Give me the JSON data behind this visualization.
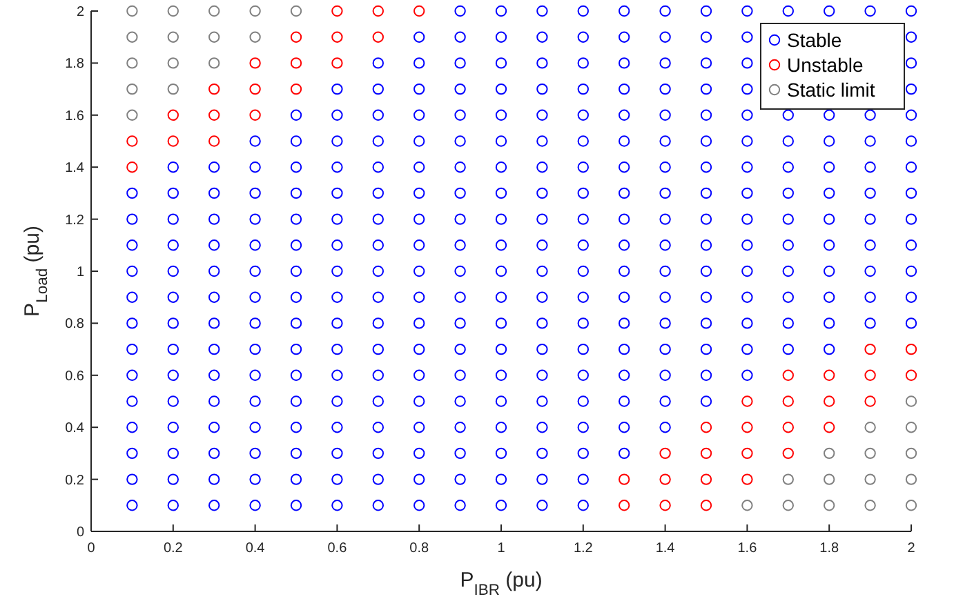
{
  "chart_data": {
    "type": "scatter",
    "xlabel": "P$_{IBR}$ (pu)",
    "ylabel": "P$_{Load}$ (pu)",
    "xlim": [
      0,
      2
    ],
    "xticks": [
      0,
      0.2,
      0.4,
      0.6,
      0.8,
      1,
      1.2,
      1.4,
      1.6,
      1.8,
      2
    ],
    "ylim": [
      0,
      2
    ],
    "yticks": [
      0,
      0.2,
      0.4,
      0.6,
      0.8,
      1,
      1.2,
      1.4,
      1.6,
      1.8,
      2
    ],
    "grid": false,
    "legend": "top right",
    "marker": "circle",
    "series": [
      {
        "name": "Stable",
        "color": "#0000ff",
        "x": [
          0.1,
          0.2,
          0.3,
          0.4,
          0.5,
          0.6,
          0.7,
          0.8,
          0.9,
          1,
          1.1,
          1.2,
          0.1,
          0.2,
          0.3,
          0.4,
          0.5,
          0.6,
          0.7,
          0.8,
          0.9,
          1,
          1.1,
          1.2,
          0.1,
          0.2,
          0.3,
          0.4,
          0.5,
          0.6,
          0.7,
          0.8,
          0.9,
          1,
          1.1,
          1.2,
          1.3,
          0.1,
          0.2,
          0.3,
          0.4,
          0.5,
          0.6,
          0.7,
          0.8,
          0.9,
          1,
          1.1,
          1.2,
          1.3,
          1.4,
          0.1,
          0.2,
          0.3,
          0.4,
          0.5,
          0.6,
          0.7,
          0.8,
          0.9,
          1,
          1.1,
          1.2,
          1.3,
          1.4,
          1.5,
          0.1,
          0.2,
          0.3,
          0.4,
          0.5,
          0.6,
          0.7,
          0.8,
          0.9,
          1,
          1.1,
          1.2,
          1.3,
          1.4,
          1.5,
          1.6,
          0.1,
          0.2,
          0.3,
          0.4,
          0.5,
          0.6,
          0.7,
          0.8,
          0.9,
          1,
          1.1,
          1.2,
          1.3,
          1.4,
          1.5,
          1.6,
          1.7,
          1.8,
          0.1,
          0.2,
          0.3,
          0.4,
          0.5,
          0.6,
          0.7,
          0.8,
          0.9,
          1,
          1.1,
          1.2,
          1.3,
          1.4,
          1.5,
          1.6,
          1.7,
          1.8,
          1.9,
          2,
          0.1,
          0.2,
          0.3,
          0.4,
          0.5,
          0.6,
          0.7,
          0.8,
          0.9,
          1,
          1.1,
          1.2,
          1.3,
          1.4,
          1.5,
          1.6,
          1.7,
          1.8,
          1.9,
          2,
          0.1,
          0.2,
          0.3,
          0.4,
          0.5,
          0.6,
          0.7,
          0.8,
          0.9,
          1,
          1.1,
          1.2,
          1.3,
          1.4,
          1.5,
          1.6,
          1.7,
          1.8,
          1.9,
          2,
          0.1,
          0.2,
          0.3,
          0.4,
          0.5,
          0.6,
          0.7,
          0.8,
          0.9,
          1,
          1.1,
          1.2,
          1.3,
          1.4,
          1.5,
          1.6,
          1.7,
          1.8,
          1.9,
          2,
          0.1,
          0.2,
          0.3,
          0.4,
          0.5,
          0.6,
          0.7,
          0.8,
          0.9,
          1,
          1.1,
          1.2,
          1.3,
          1.4,
          1.5,
          1.6,
          1.7,
          1.8,
          1.9,
          2,
          0.1,
          0.2,
          0.3,
          0.4,
          0.5,
          0.6,
          0.7,
          0.8,
          0.9,
          1,
          1.1,
          1.2,
          1.3,
          1.4,
          1.5,
          1.6,
          1.7,
          1.8,
          1.9,
          2,
          0.2,
          0.3,
          0.4,
          0.5,
          0.6,
          0.7,
          0.8,
          0.9,
          1,
          1.1,
          1.2,
          1.3,
          1.4,
          1.5,
          1.6,
          1.7,
          1.8,
          1.9,
          2,
          0.4,
          0.5,
          0.6,
          0.7,
          0.8,
          0.9,
          1,
          1.1,
          1.2,
          1.3,
          1.4,
          1.5,
          1.6,
          1.7,
          1.8,
          1.9,
          2,
          0.5,
          0.6,
          0.7,
          0.8,
          0.9,
          1,
          1.1,
          1.2,
          1.3,
          1.4,
          1.5,
          1.6,
          1.7,
          1.8,
          1.9,
          2,
          0.6,
          0.7,
          0.8,
          0.9,
          1,
          1.1,
          1.2,
          1.3,
          1.4,
          1.5,
          1.6,
          2,
          0.7,
          0.8,
          0.9,
          1,
          1.1,
          1.2,
          1.3,
          1.4,
          1.5,
          1.6,
          2,
          0.8,
          0.9,
          1,
          1.1,
          1.2,
          1.3,
          1.4,
          1.5,
          1.6,
          2,
          0.9,
          1,
          1.1,
          1.2,
          1.3,
          1.4,
          1.5,
          1.6,
          1.7,
          1.8,
          1.9,
          2
        ],
        "values": [
          0.1,
          0.1,
          0.1,
          0.1,
          0.1,
          0.1,
          0.1,
          0.1,
          0.1,
          0.1,
          0.1,
          0.1,
          0.2,
          0.2,
          0.2,
          0.2,
          0.2,
          0.2,
          0.2,
          0.2,
          0.2,
          0.2,
          0.2,
          0.2,
          0.3,
          0.3,
          0.3,
          0.3,
          0.3,
          0.3,
          0.3,
          0.3,
          0.3,
          0.3,
          0.3,
          0.3,
          0.3,
          0.4,
          0.4,
          0.4,
          0.4,
          0.4,
          0.4,
          0.4,
          0.4,
          0.4,
          0.4,
          0.4,
          0.4,
          0.4,
          0.4,
          0.5,
          0.5,
          0.5,
          0.5,
          0.5,
          0.5,
          0.5,
          0.5,
          0.5,
          0.5,
          0.5,
          0.5,
          0.5,
          0.5,
          0.5,
          0.6,
          0.6,
          0.6,
          0.6,
          0.6,
          0.6,
          0.6,
          0.6,
          0.6,
          0.6,
          0.6,
          0.6,
          0.6,
          0.6,
          0.6,
          0.6,
          0.7,
          0.7,
          0.7,
          0.7,
          0.7,
          0.7,
          0.7,
          0.7,
          0.7,
          0.7,
          0.7,
          0.7,
          0.7,
          0.7,
          0.7,
          0.7,
          0.7,
          0.7,
          0.8,
          0.8,
          0.8,
          0.8,
          0.8,
          0.8,
          0.8,
          0.8,
          0.8,
          0.8,
          0.8,
          0.8,
          0.8,
          0.8,
          0.8,
          0.8,
          0.8,
          0.8,
          0.8,
          0.8,
          0.9,
          0.9,
          0.9,
          0.9,
          0.9,
          0.9,
          0.9,
          0.9,
          0.9,
          0.9,
          0.9,
          0.9,
          0.9,
          0.9,
          0.9,
          0.9,
          0.9,
          0.9,
          0.9,
          0.9,
          1,
          1,
          1,
          1,
          1,
          1,
          1,
          1,
          1,
          1,
          1,
          1,
          1,
          1,
          1,
          1,
          1,
          1,
          1,
          1,
          1.1,
          1.1,
          1.1,
          1.1,
          1.1,
          1.1,
          1.1,
          1.1,
          1.1,
          1.1,
          1.1,
          1.1,
          1.1,
          1.1,
          1.1,
          1.1,
          1.1,
          1.1,
          1.1,
          1.1,
          1.2,
          1.2,
          1.2,
          1.2,
          1.2,
          1.2,
          1.2,
          1.2,
          1.2,
          1.2,
          1.2,
          1.2,
          1.2,
          1.2,
          1.2,
          1.2,
          1.2,
          1.2,
          1.2,
          1.2,
          1.3,
          1.3,
          1.3,
          1.3,
          1.3,
          1.3,
          1.3,
          1.3,
          1.3,
          1.3,
          1.3,
          1.3,
          1.3,
          1.3,
          1.3,
          1.3,
          1.3,
          1.3,
          1.3,
          1.3,
          1.4,
          1.4,
          1.4,
          1.4,
          1.4,
          1.4,
          1.4,
          1.4,
          1.4,
          1.4,
          1.4,
          1.4,
          1.4,
          1.4,
          1.4,
          1.4,
          1.4,
          1.4,
          1.4,
          1.5,
          1.5,
          1.5,
          1.5,
          1.5,
          1.5,
          1.5,
          1.5,
          1.5,
          1.5,
          1.5,
          1.5,
          1.5,
          1.5,
          1.5,
          1.5,
          1.5,
          1.6,
          1.6,
          1.6,
          1.6,
          1.6,
          1.6,
          1.6,
          1.6,
          1.6,
          1.6,
          1.6,
          1.6,
          1.6,
          1.6,
          1.6,
          1.6,
          1.7,
          1.7,
          1.7,
          1.7,
          1.7,
          1.7,
          1.7,
          1.7,
          1.7,
          1.7,
          1.7,
          1.7,
          1.8,
          1.8,
          1.8,
          1.8,
          1.8,
          1.8,
          1.8,
          1.8,
          1.8,
          1.8,
          1.8,
          1.9,
          1.9,
          1.9,
          1.9,
          1.9,
          1.9,
          1.9,
          1.9,
          1.9,
          1.9,
          2,
          2,
          2,
          2,
          2,
          2,
          2,
          2,
          2,
          2,
          2,
          2
        ]
      },
      {
        "name": "Unstable",
        "color": "#ff0000",
        "x": [
          0.6,
          0.7,
          0.8,
          0.5,
          0.6,
          0.7,
          0.4,
          0.5,
          0.6,
          0.3,
          0.4,
          0.5,
          0.2,
          0.3,
          0.4,
          0.1,
          0.2,
          0.3,
          0.1,
          1.9,
          2,
          1.7,
          1.8,
          1.9,
          2,
          1.6,
          1.7,
          1.8,
          1.9,
          1.5,
          1.6,
          1.7,
          1.8,
          1.4,
          1.5,
          1.6,
          1.7,
          1.3,
          1.4,
          1.5,
          1.6,
          1.3,
          1.4,
          1.5
        ],
        "values": [
          2,
          2,
          2,
          1.9,
          1.9,
          1.9,
          1.8,
          1.8,
          1.8,
          1.7,
          1.7,
          1.7,
          1.6,
          1.6,
          1.6,
          1.5,
          1.5,
          1.5,
          1.4,
          0.7,
          0.7,
          0.6,
          0.6,
          0.6,
          0.6,
          0.5,
          0.5,
          0.5,
          0.5,
          0.4,
          0.4,
          0.4,
          0.4,
          0.3,
          0.3,
          0.3,
          0.3,
          0.2,
          0.2,
          0.2,
          0.2,
          0.1,
          0.1,
          0.1
        ]
      },
      {
        "name": "Static limit",
        "color": "#808080",
        "x": [
          0.1,
          0.2,
          0.3,
          0.4,
          0.5,
          0.1,
          0.2,
          0.3,
          0.4,
          0.1,
          0.2,
          0.3,
          0.1,
          0.2,
          0.1,
          2,
          1.9,
          2,
          1.8,
          1.9,
          2,
          1.7,
          1.8,
          1.9,
          2,
          1.6,
          1.7,
          1.8,
          1.9,
          2
        ],
        "values": [
          2,
          2,
          2,
          2,
          2,
          1.9,
          1.9,
          1.9,
          1.9,
          1.8,
          1.8,
          1.8,
          1.7,
          1.7,
          1.6,
          0.5,
          0.4,
          0.4,
          0.3,
          0.3,
          0.3,
          0.2,
          0.2,
          0.2,
          0.2,
          0.1,
          0.1,
          0.1,
          0.1,
          0.1
        ]
      }
    ]
  }
}
